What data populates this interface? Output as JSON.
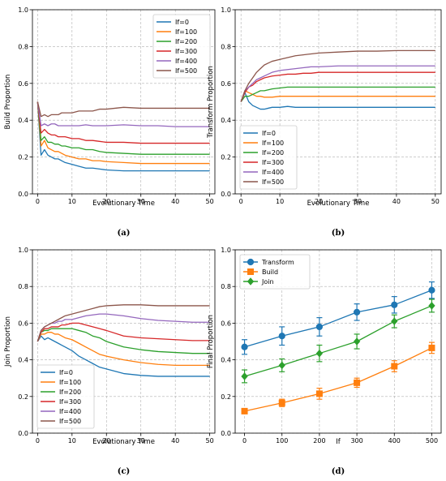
{
  "colors": {
    "If=0": "#1f77b4",
    "If=100": "#ff7f0e",
    "If=200": "#2ca02c",
    "If=300": "#d62728",
    "If=400": "#9467bd",
    "If=500": "#8c564b"
  },
  "chart_data": [
    {
      "panel": "(a)",
      "type": "line",
      "xlabel": "Evolutionary Time",
      "ylabel": "Build Proportion",
      "xlim": [
        -1.5,
        51.5
      ],
      "ylim": [
        0,
        1
      ],
      "xticks": [
        0,
        10,
        20,
        30,
        40,
        50
      ],
      "yticks": [
        0.0,
        0.2,
        0.4,
        0.6,
        0.8,
        1.0
      ],
      "grid": true,
      "legend": "top-right",
      "x": [
        0,
        1,
        2,
        3,
        4,
        5,
        6,
        7,
        8,
        10,
        12,
        14,
        16,
        18,
        20,
        25,
        30,
        35,
        40,
        45,
        50
      ],
      "series": [
        {
          "name": "If=0",
          "values": [
            0.5,
            0.21,
            0.24,
            0.21,
            0.2,
            0.19,
            0.19,
            0.18,
            0.17,
            0.16,
            0.15,
            0.14,
            0.14,
            0.135,
            0.13,
            0.125,
            0.125,
            0.125,
            0.125,
            0.125,
            0.125
          ]
        },
        {
          "name": "If=100",
          "values": [
            0.5,
            0.26,
            0.29,
            0.25,
            0.24,
            0.23,
            0.23,
            0.22,
            0.21,
            0.2,
            0.19,
            0.19,
            0.18,
            0.18,
            0.175,
            0.17,
            0.165,
            0.165,
            0.165,
            0.165,
            0.165
          ]
        },
        {
          "name": "If=200",
          "values": [
            0.5,
            0.29,
            0.31,
            0.28,
            0.28,
            0.27,
            0.27,
            0.26,
            0.26,
            0.25,
            0.25,
            0.24,
            0.24,
            0.23,
            0.225,
            0.22,
            0.215,
            0.215,
            0.215,
            0.215,
            0.215
          ]
        },
        {
          "name": "If=300",
          "values": [
            0.5,
            0.33,
            0.35,
            0.33,
            0.32,
            0.32,
            0.31,
            0.31,
            0.31,
            0.3,
            0.3,
            0.29,
            0.29,
            0.285,
            0.28,
            0.28,
            0.275,
            0.275,
            0.275,
            0.275,
            0.275
          ]
        },
        {
          "name": "If=400",
          "values": [
            0.5,
            0.37,
            0.38,
            0.37,
            0.38,
            0.38,
            0.37,
            0.37,
            0.37,
            0.37,
            0.37,
            0.375,
            0.37,
            0.37,
            0.37,
            0.375,
            0.37,
            0.37,
            0.365,
            0.365,
            0.365
          ]
        },
        {
          "name": "If=500",
          "values": [
            0.5,
            0.42,
            0.43,
            0.42,
            0.43,
            0.43,
            0.43,
            0.44,
            0.44,
            0.44,
            0.45,
            0.45,
            0.45,
            0.46,
            0.46,
            0.47,
            0.465,
            0.465,
            0.465,
            0.465,
            0.465
          ]
        }
      ]
    },
    {
      "panel": "(b)",
      "type": "line",
      "xlabel": "Evolutionary Time",
      "ylabel": "Transform Proportion",
      "xlim": [
        -1.5,
        51.5
      ],
      "ylim": [
        0,
        1
      ],
      "xticks": [
        0,
        10,
        20,
        30,
        40,
        50
      ],
      "yticks": [
        0.0,
        0.2,
        0.4,
        0.6,
        0.8,
        1.0
      ],
      "grid": true,
      "legend": "bottom-left",
      "x": [
        0,
        1,
        2,
        3,
        4,
        5,
        6,
        7,
        8,
        10,
        12,
        14,
        16,
        18,
        20,
        25,
        30,
        35,
        40,
        45,
        50
      ],
      "series": [
        {
          "name": "If=0",
          "values": [
            0.5,
            0.55,
            0.5,
            0.48,
            0.47,
            0.46,
            0.46,
            0.465,
            0.47,
            0.47,
            0.475,
            0.47,
            0.47,
            0.47,
            0.47,
            0.47,
            0.47,
            0.47,
            0.47,
            0.47,
            0.47
          ]
        },
        {
          "name": "If=100",
          "values": [
            0.5,
            0.56,
            0.55,
            0.54,
            0.53,
            0.53,
            0.525,
            0.525,
            0.525,
            0.53,
            0.53,
            0.53,
            0.53,
            0.53,
            0.53,
            0.53,
            0.53,
            0.53,
            0.53,
            0.53,
            0.53
          ]
        },
        {
          "name": "If=200",
          "values": [
            0.5,
            0.53,
            0.53,
            0.54,
            0.55,
            0.56,
            0.56,
            0.565,
            0.57,
            0.575,
            0.58,
            0.58,
            0.58,
            0.58,
            0.58,
            0.58,
            0.58,
            0.58,
            0.58,
            0.58,
            0.58
          ]
        },
        {
          "name": "If=300",
          "values": [
            0.5,
            0.55,
            0.58,
            0.59,
            0.61,
            0.62,
            0.63,
            0.635,
            0.64,
            0.645,
            0.65,
            0.65,
            0.655,
            0.655,
            0.66,
            0.66,
            0.66,
            0.66,
            0.66,
            0.66,
            0.66
          ]
        },
        {
          "name": "If=400",
          "values": [
            0.5,
            0.56,
            0.58,
            0.6,
            0.62,
            0.63,
            0.64,
            0.65,
            0.66,
            0.67,
            0.675,
            0.68,
            0.685,
            0.69,
            0.69,
            0.695,
            0.695,
            0.695,
            0.695,
            0.695,
            0.695
          ]
        },
        {
          "name": "If=500",
          "values": [
            0.5,
            0.56,
            0.6,
            0.63,
            0.66,
            0.68,
            0.7,
            0.71,
            0.72,
            0.73,
            0.74,
            0.75,
            0.755,
            0.76,
            0.765,
            0.77,
            0.775,
            0.775,
            0.778,
            0.778,
            0.778
          ]
        }
      ]
    },
    {
      "panel": "(c)",
      "type": "line",
      "xlabel": "Evolutionary Time",
      "ylabel": "Join Proportion",
      "xlim": [
        -1.5,
        51.5
      ],
      "ylim": [
        0,
        1
      ],
      "xticks": [
        0,
        10,
        20,
        30,
        40,
        50
      ],
      "yticks": [
        0.0,
        0.2,
        0.4,
        0.6,
        0.8,
        1.0
      ],
      "grid": true,
      "legend": "bottom-left",
      "x": [
        0,
        1,
        2,
        3,
        4,
        5,
        6,
        7,
        8,
        10,
        12,
        14,
        16,
        18,
        20,
        25,
        30,
        35,
        40,
        45,
        50
      ],
      "series": [
        {
          "name": "If=0",
          "values": [
            0.5,
            0.53,
            0.51,
            0.52,
            0.51,
            0.5,
            0.49,
            0.48,
            0.47,
            0.45,
            0.42,
            0.4,
            0.38,
            0.36,
            0.35,
            0.325,
            0.315,
            0.31,
            0.31,
            0.31,
            0.31
          ]
        },
        {
          "name": "If=100",
          "values": [
            0.5,
            0.54,
            0.54,
            0.55,
            0.55,
            0.54,
            0.54,
            0.53,
            0.52,
            0.51,
            0.49,
            0.47,
            0.45,
            0.43,
            0.42,
            0.4,
            0.385,
            0.375,
            0.37,
            0.37,
            0.37
          ]
        },
        {
          "name": "If=200",
          "values": [
            0.5,
            0.55,
            0.56,
            0.56,
            0.57,
            0.57,
            0.57,
            0.57,
            0.57,
            0.57,
            0.56,
            0.55,
            0.53,
            0.52,
            0.5,
            0.47,
            0.455,
            0.445,
            0.44,
            0.435,
            0.435
          ]
        },
        {
          "name": "If=300",
          "values": [
            0.5,
            0.55,
            0.57,
            0.57,
            0.58,
            0.58,
            0.58,
            0.59,
            0.59,
            0.6,
            0.6,
            0.59,
            0.58,
            0.57,
            0.56,
            0.53,
            0.52,
            0.515,
            0.51,
            0.505,
            0.505
          ]
        },
        {
          "name": "If=400",
          "values": [
            0.5,
            0.56,
            0.58,
            0.59,
            0.6,
            0.6,
            0.61,
            0.61,
            0.62,
            0.62,
            0.63,
            0.64,
            0.645,
            0.65,
            0.65,
            0.64,
            0.625,
            0.615,
            0.61,
            0.605,
            0.605
          ]
        },
        {
          "name": "If=500",
          "values": [
            0.5,
            0.56,
            0.58,
            0.59,
            0.6,
            0.61,
            0.62,
            0.63,
            0.64,
            0.65,
            0.66,
            0.67,
            0.68,
            0.69,
            0.695,
            0.7,
            0.7,
            0.695,
            0.695,
            0.695,
            0.695
          ]
        }
      ]
    },
    {
      "panel": "(d)",
      "type": "line",
      "xlabel": "If",
      "ylabel": "Final Proportion",
      "xlim": [
        -25,
        525
      ],
      "ylim": [
        0,
        1
      ],
      "xticks": [
        0,
        100,
        200,
        300,
        400,
        500
      ],
      "yticks": [
        0.0,
        0.2,
        0.4,
        0.6,
        0.8,
        1.0
      ],
      "grid": true,
      "legend": "top-left",
      "error_bars": true,
      "x": [
        0,
        100,
        200,
        300,
        400,
        500
      ],
      "series": [
        {
          "name": "Transform",
          "color": "#1f77b4",
          "marker": "circle",
          "values": [
            0.47,
            0.53,
            0.58,
            0.66,
            0.7,
            0.78
          ],
          "errors": [
            0.04,
            0.05,
            0.05,
            0.045,
            0.045,
            0.045
          ]
        },
        {
          "name": "Build",
          "color": "#ff7f0e",
          "marker": "square",
          "values": [
            0.12,
            0.165,
            0.215,
            0.275,
            0.365,
            0.465
          ],
          "errors": [
            0.01,
            0.02,
            0.03,
            0.025,
            0.03,
            0.03
          ]
        },
        {
          "name": "Join",
          "color": "#2ca02c",
          "marker": "diamond",
          "values": [
            0.31,
            0.37,
            0.435,
            0.5,
            0.61,
            0.695
          ],
          "errors": [
            0.035,
            0.035,
            0.045,
            0.04,
            0.035,
            0.035
          ]
        }
      ]
    }
  ]
}
